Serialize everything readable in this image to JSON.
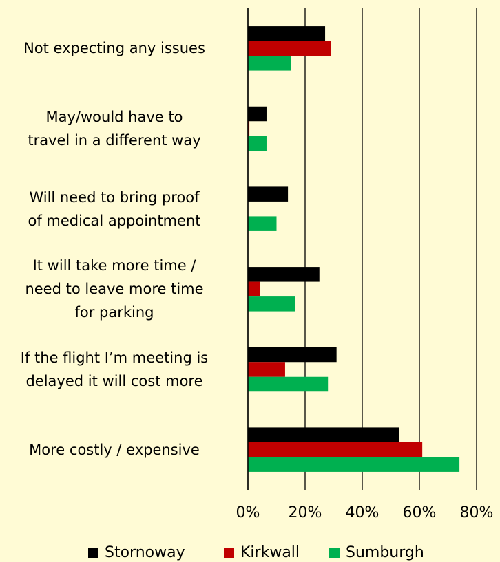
{
  "chart_data": {
    "type": "barh",
    "categories": [
      "Not expecting any issues",
      "May/would have to\ntravel in a different way",
      "Will need to bring proof\nof medical appointment",
      "It will take more time /\nneed to leave more time\nfor parking",
      "If the flight I’m meeting is\ndelayed it will cost more",
      "More costly / expensive"
    ],
    "series": [
      {
        "name": "Stornoway",
        "color": "#000000",
        "values": [
          27,
          6.5,
          14,
          25,
          31,
          53
        ]
      },
      {
        "name": "Kirkwall",
        "color": "#c00000",
        "values": [
          29,
          0.5,
          0,
          4.3,
          13,
          61
        ]
      },
      {
        "name": "Sumburgh",
        "color": "#00b050",
        "values": [
          15,
          6.5,
          10,
          16.4,
          28,
          74
        ]
      }
    ],
    "xlim": [
      0,
      80
    ],
    "xticks": [
      {
        "value": 0,
        "label": "0%"
      },
      {
        "value": 20,
        "label": "20%"
      },
      {
        "value": 40,
        "label": "40%"
      },
      {
        "value": 60,
        "label": "60%"
      },
      {
        "value": 80,
        "label": "80%"
      }
    ],
    "grid": true,
    "legend": "bottom"
  }
}
